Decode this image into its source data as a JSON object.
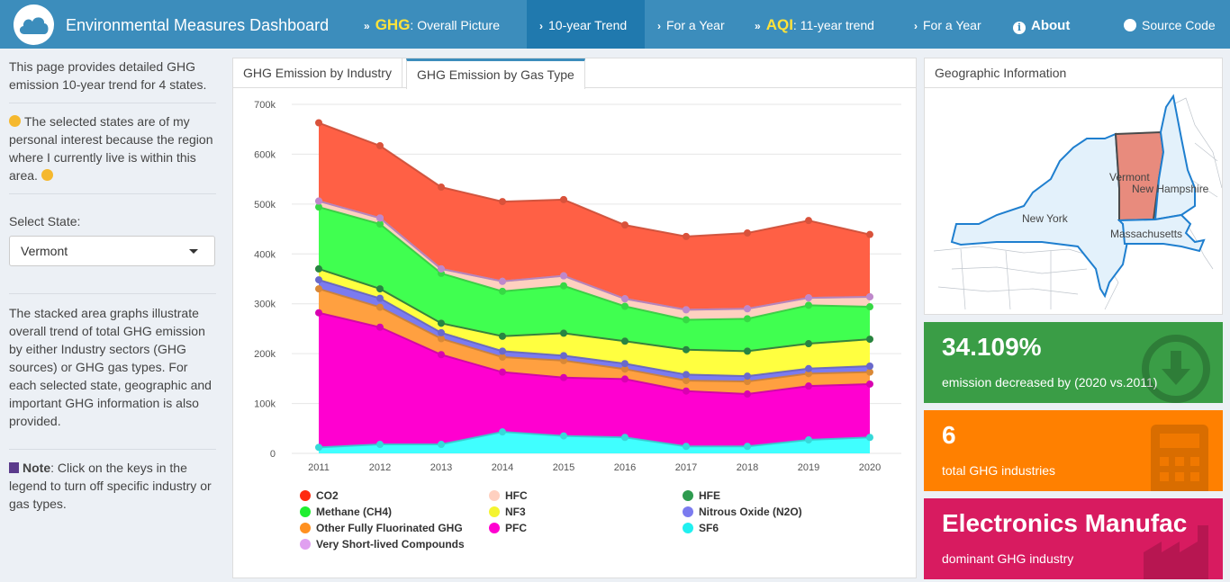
{
  "navbar": {
    "brand": "Environmental Measures Dashboard",
    "items": [
      {
        "big": "GHG",
        "sub": ": Overall Picture"
      },
      {
        "label": "10-year Trend"
      },
      {
        "label": "For a Year"
      },
      {
        "big": "AQI",
        "sub": ": 11-year trend"
      },
      {
        "label": "For a Year"
      },
      {
        "label": "About"
      },
      {
        "label": "Source Code"
      }
    ]
  },
  "sidebar": {
    "intro": "This page provides detailed GHG emission 10-year trend for 4 states.",
    "interest": "The selected states are of my personal interest because the region where I currently live is within this area.",
    "select_label": "Select State:",
    "selected_state": "Vermont",
    "description": "The stacked area graphs illustrate overall trend of total GHG emission by either Industry sectors (GHG sources) or GHG gas types. For each selected state, geographic and important GHG information is also provided.",
    "note_title": "Note",
    "note_text": ": Click on the keys in the legend to turn off specific industry or gas types."
  },
  "tabs": {
    "industry": "GHG Emission by Industry",
    "gas": "GHG Emission by Gas Type"
  },
  "geo": {
    "title": "Geographic Information",
    "labels": {
      "vermont": "Vermont",
      "new_hampshire": "New Hampshire",
      "new_york": "New York",
      "massachusetts": "Massachusetts"
    }
  },
  "value_boxes": {
    "decrease_value": "34.109%",
    "decrease_label": "emission decreased by (2020 vs.2011)",
    "industries_value": "6",
    "industries_label": "total GHG industries",
    "dominant_value": "Electronics Manufac",
    "dominant_label": "dominant GHG industry"
  },
  "chart_data": {
    "type": "area",
    "stacked": true,
    "x": [
      2011,
      2012,
      2013,
      2014,
      2015,
      2016,
      2017,
      2018,
      2019,
      2020
    ],
    "y_ticks": [
      "0",
      "100k",
      "200k",
      "300k",
      "400k",
      "500k",
      "600k",
      "700k"
    ],
    "ylim": [
      0,
      700000
    ],
    "series": [
      {
        "name": "SF6",
        "color": "#40ffff",
        "values": [
          12000,
          18000,
          18000,
          43000,
          35000,
          32000,
          14000,
          14000,
          27000,
          32000
        ]
      },
      {
        "name": "PFC",
        "color": "#ff00d0",
        "values": [
          270000,
          235000,
          180000,
          120000,
          117000,
          117000,
          111000,
          105000,
          108000,
          107000
        ]
      },
      {
        "name": "Other Fully Fluorinated GHG",
        "color": "#ffa040",
        "values": [
          48000,
          40000,
          32000,
          30000,
          34000,
          20000,
          21000,
          25000,
          25000,
          24000
        ]
      },
      {
        "name": "Nitrous Oxide (N2O)",
        "color": "#7b7bef",
        "values": [
          18000,
          18000,
          12000,
          12000,
          10000,
          11000,
          12000,
          11000,
          10000,
          12000
        ]
      },
      {
        "name": "NF3",
        "color": "#ffff40",
        "values": [
          22000,
          19000,
          19000,
          30000,
          45000,
          45000,
          50000,
          50000,
          50000,
          54000
        ]
      },
      {
        "name": "HFE",
        "color": "#2e9b4f",
        "values": [
          0,
          0,
          0,
          0,
          0,
          0,
          0,
          0,
          0,
          0
        ]
      },
      {
        "name": "Methane (CH4)",
        "color": "#40ff50",
        "values": [
          124000,
          130000,
          100000,
          90000,
          95000,
          70000,
          60000,
          65000,
          77000,
          65000
        ]
      },
      {
        "name": "HFC",
        "color": "#ffd0c0",
        "values": [
          12000,
          12000,
          9000,
          20000,
          20000,
          15000,
          20000,
          20000,
          15000,
          20000
        ]
      },
      {
        "name": "Very Short-lived Compounds",
        "color": "#e0a0f0",
        "values": [
          0,
          0,
          0,
          0,
          0,
          0,
          0,
          0,
          0,
          0
        ]
      },
      {
        "name": "CO2",
        "color": "#ff6045",
        "values": [
          157000,
          145000,
          164000,
          160000,
          153000,
          148000,
          147000,
          152000,
          155000,
          125000
        ]
      }
    ],
    "legend": [
      {
        "name": "CO2",
        "color": "#ff2a0f"
      },
      {
        "name": "HFC",
        "color": "#ffd0c0"
      },
      {
        "name": "HFE",
        "color": "#2e9b4f"
      },
      {
        "name": "Methane (CH4)",
        "color": "#20ee30"
      },
      {
        "name": "NF3",
        "color": "#f4f430"
      },
      {
        "name": "Nitrous Oxide (N2O)",
        "color": "#7b7bef"
      },
      {
        "name": "Other Fully Fluorinated GHG",
        "color": "#ff9020"
      },
      {
        "name": "PFC",
        "color": "#ff00d0"
      },
      {
        "name": "SF6",
        "color": "#20f0f0"
      },
      {
        "name": "Very Short-lived Compounds",
        "color": "#e0a0f0"
      }
    ]
  }
}
